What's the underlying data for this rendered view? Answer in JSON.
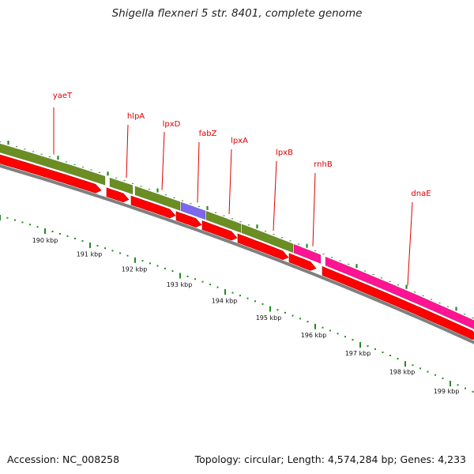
{
  "title": "Shigella flexneri 5 str. 8401, complete genome",
  "footer": {
    "accession": "Accession: NC_008258",
    "summary": "Topology: circular; Length: 4,574,284 bp; Genes: 4,233"
  },
  "colors": {
    "cds_gene": "#6b8e23",
    "cds_protein": "#ff0000",
    "highlight_blue": "#7b68ee",
    "highlight_pink": "#ff1493",
    "backbone": "#808080",
    "label": "#dd0000",
    "tick": "#228b22"
  },
  "genes": [
    {
      "name": "yaeT",
      "color": "#6b8e23"
    },
    {
      "name": "hlpA",
      "color": "#6b8e23"
    },
    {
      "name": "lpxD",
      "color": "#6b8e23"
    },
    {
      "name": "fabZ",
      "color": "#7b68ee"
    },
    {
      "name": "lpxA",
      "color": "#6b8e23"
    },
    {
      "name": "lpxB",
      "color": "#6b8e23"
    },
    {
      "name": "rnhB",
      "color": "#ff1493"
    },
    {
      "name": "dnaE",
      "color": "#ff1493"
    }
  ],
  "scale_labels": [
    "190 kbp",
    "191 kbp",
    "192 kbp",
    "193 kbp",
    "194 kbp",
    "195 kbp",
    "196 kbp",
    "197 kbp",
    "198 kbp",
    "199 kbp"
  ]
}
